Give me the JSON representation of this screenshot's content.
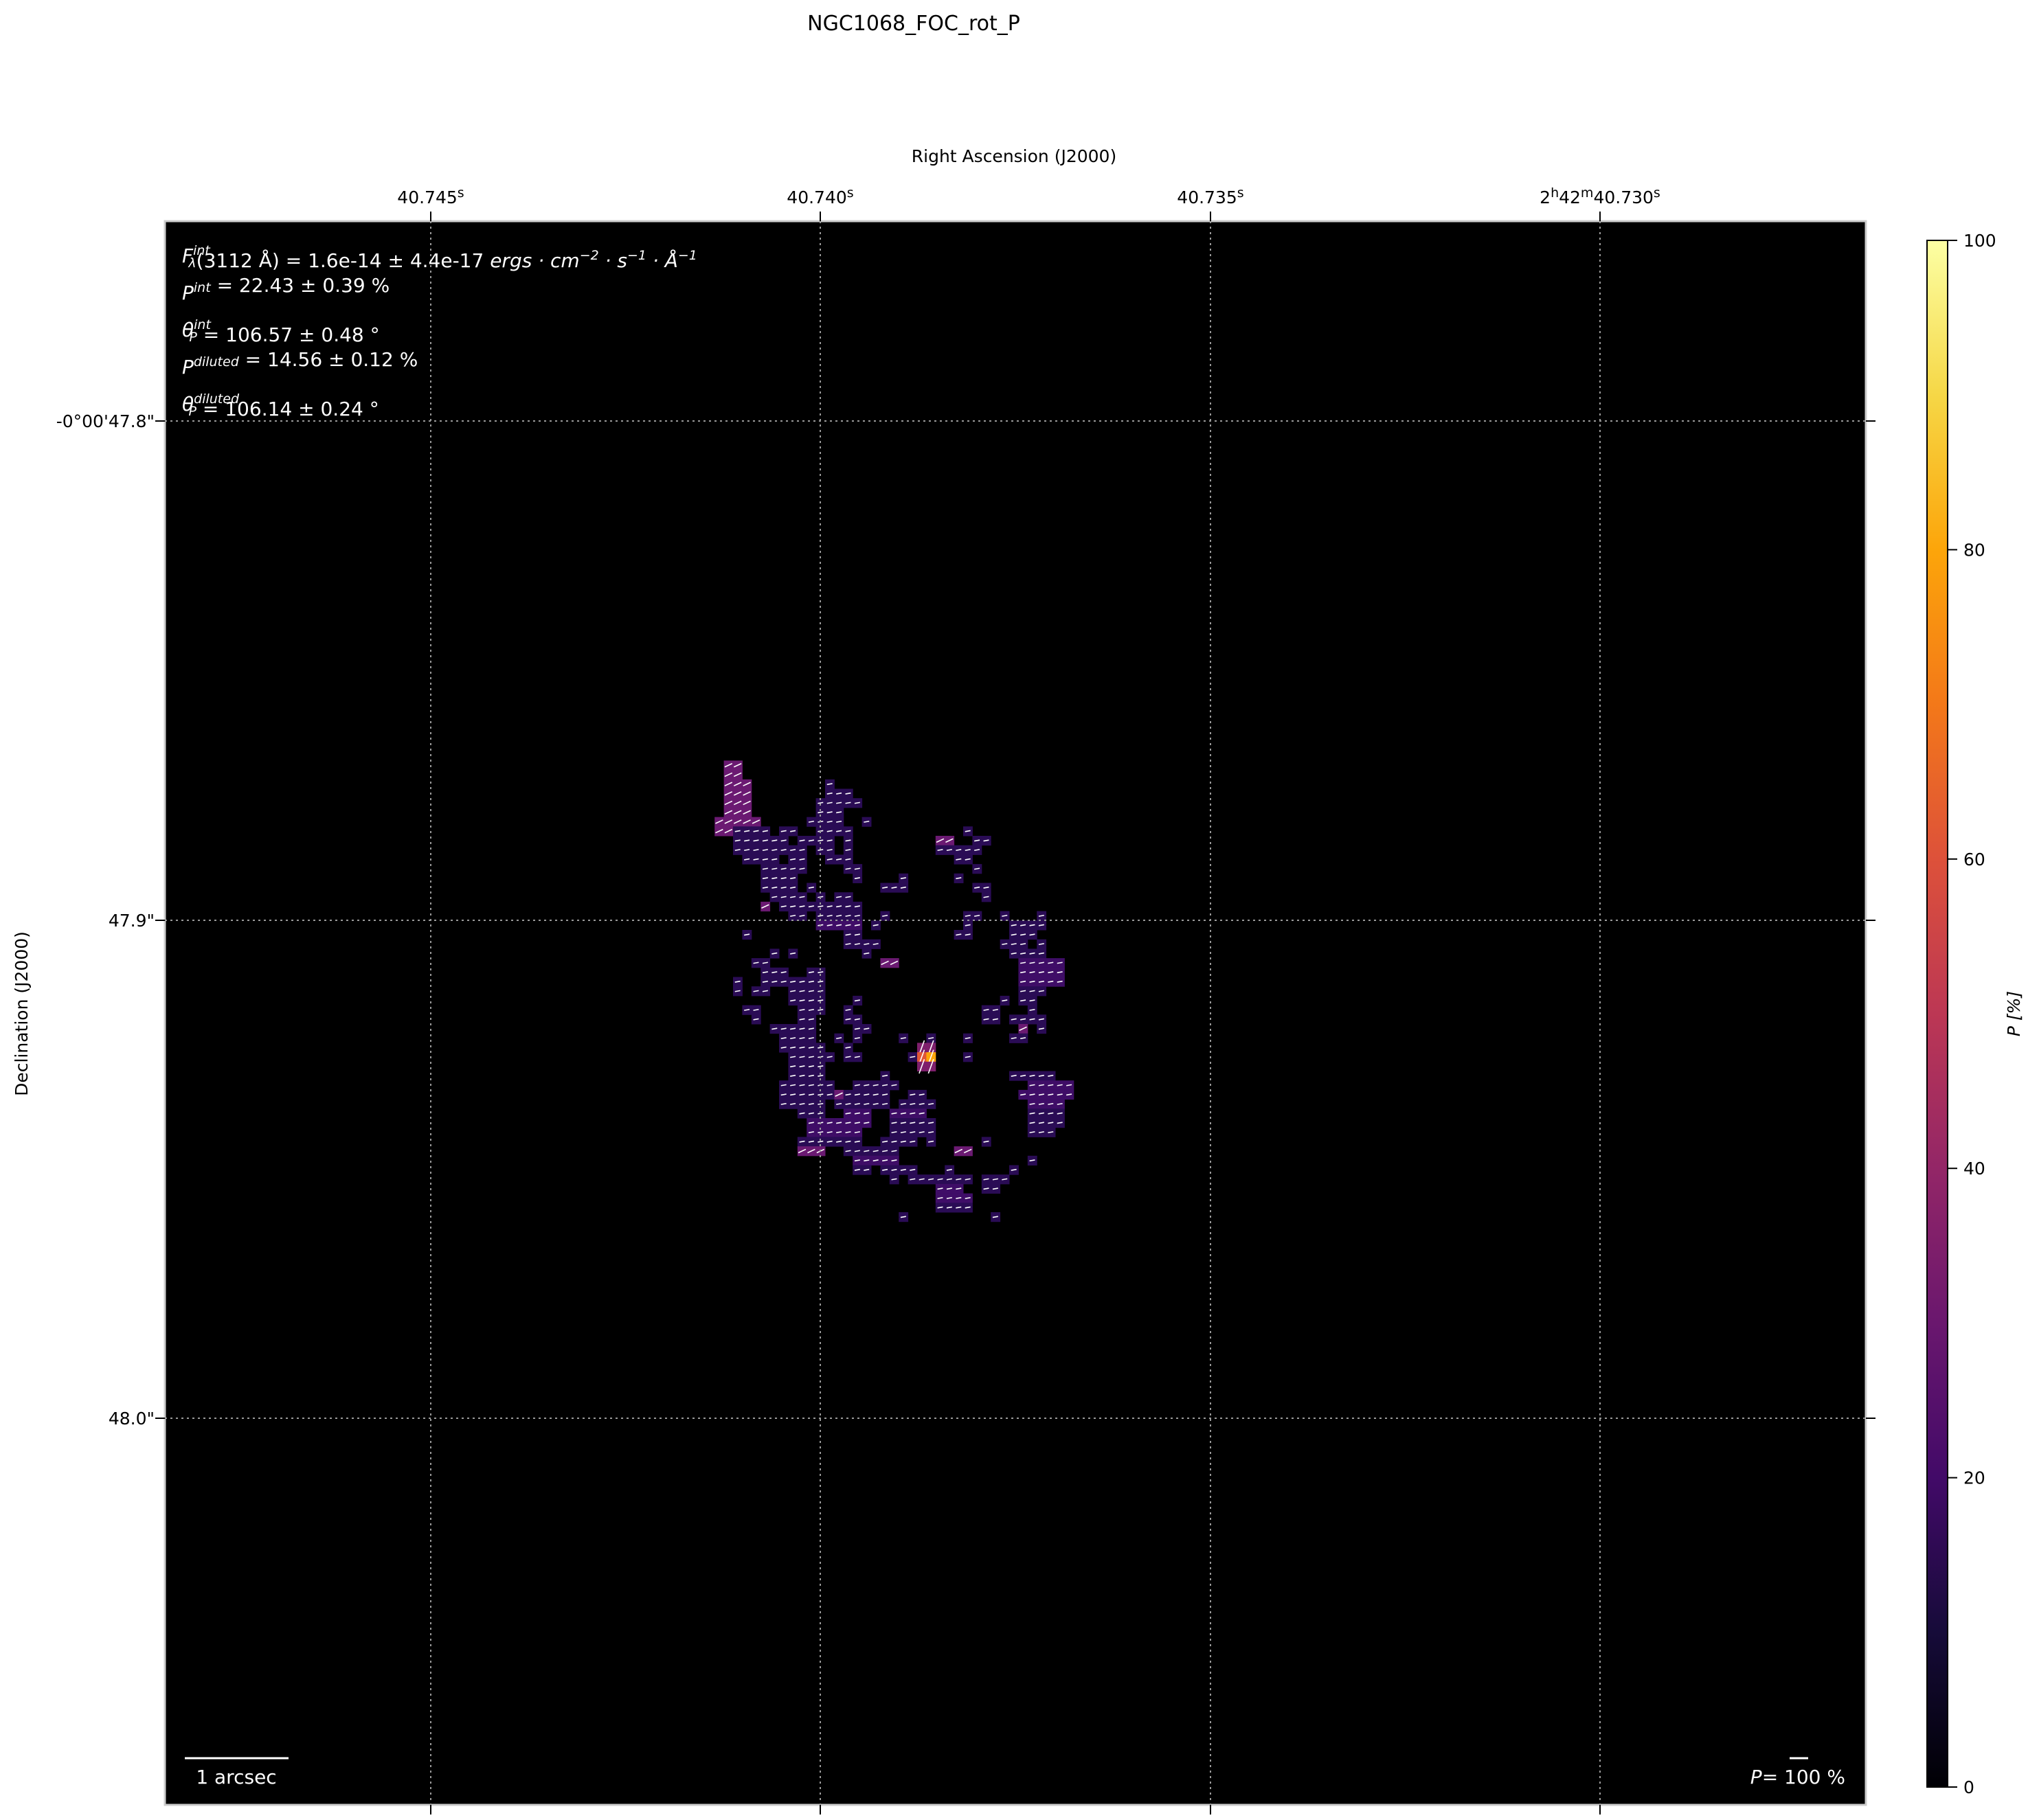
{
  "title": "NGC1068_FOC_rot_P",
  "chart_data": {
    "type": "heatmap",
    "title": "NGC1068_FOC_rot_P",
    "xlabel": "Right Ascension (J2000)",
    "ylabel": "Declination (J2000)",
    "x_ticks": [
      {
        "prefix": "",
        "h": "",
        "m": "",
        "value": "40.745",
        "unit": "s"
      },
      {
        "prefix": "",
        "h": "",
        "m": "",
        "value": "40.740",
        "unit": "s"
      },
      {
        "prefix": "",
        "h": "",
        "m": "",
        "value": "40.735",
        "unit": "s"
      },
      {
        "prefix": "2",
        "h": "h",
        "m": "42",
        "value": "40.730",
        "unit": "s"
      }
    ],
    "y_ticks": [
      "-0°00'47.8\"",
      "47.9\"",
      "48.0\""
    ],
    "grid": true,
    "colormap": "inferno",
    "colorbar": {
      "label": "P [%]",
      "range": [
        0,
        100
      ],
      "ticks": [
        "0",
        "20",
        "40",
        "60",
        "80",
        "100"
      ]
    },
    "background_color": "#000000",
    "annotations": [
      {
        "sym": "F",
        "sup": "int",
        "sub": "λ",
        "pre": "(3112 Å) = 1.6e-14 ± 4.4e-17 ",
        "unit": "ergs · cm",
        "e1": "−2",
        "u2": " · s",
        "e2": "−1",
        "u3": " · Å",
        "e3": "−1"
      },
      {
        "sym": "P",
        "sup": "int",
        "sub": "",
        "text": " = 22.43 ± 0.39 %"
      },
      {
        "sym": "θ",
        "sup": "int",
        "sub": "P",
        "text": " = 106.57 ± 0.48 °"
      },
      {
        "sym": "P",
        "sup": "diluted",
        "sub": "",
        "text": " = 14.56 ± 0.12 %"
      },
      {
        "sym": "θ",
        "sup": "diluted",
        "sub": "P",
        "text": " = 106.14 ± 0.24 °"
      }
    ],
    "scale_bar_label": "1 arcsec",
    "vector_scale": {
      "sym": "P",
      "text": "= 100 %"
    },
    "peak_value_percent": 85
  }
}
